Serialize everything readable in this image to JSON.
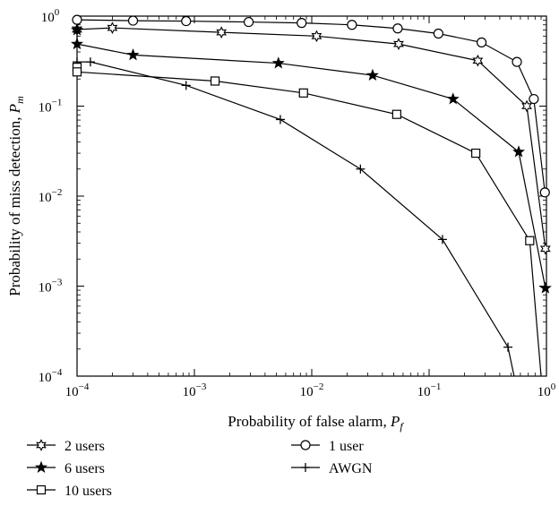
{
  "chart_data": {
    "type": "line",
    "xlabel": "Probability of false alarm, ",
    "xlabel_sym": "P",
    "xlabel_sub": "f",
    "ylabel": "Probability of miss detection, ",
    "ylabel_sym": "P",
    "ylabel_sub": "m",
    "xscale": "log",
    "yscale": "log",
    "xlim": [
      0.0001,
      1
    ],
    "ylim": [
      0.0001,
      1
    ],
    "x_ticks": [
      0.0001,
      0.001,
      0.01,
      0.1,
      1
    ],
    "x_tick_labels": [
      {
        "base": "10",
        "exp": "−4"
      },
      {
        "base": "10",
        "exp": "−3"
      },
      {
        "base": "10",
        "exp": "−2"
      },
      {
        "base": "10",
        "exp": "−1"
      },
      {
        "base": "10",
        "exp": "0"
      }
    ],
    "y_ticks": [
      0.0001,
      0.001,
      0.01,
      0.1,
      1
    ],
    "y_tick_labels": [
      {
        "base": "10",
        "exp": "−4"
      },
      {
        "base": "10",
        "exp": "−3"
      },
      {
        "base": "10",
        "exp": "−2"
      },
      {
        "base": "10",
        "exp": "−1"
      },
      {
        "base": "10",
        "exp": "0"
      }
    ],
    "grid": false,
    "legend_position": "below",
    "series": [
      {
        "name": "2 users",
        "marker": "hexstar",
        "color": "#000000",
        "x": [
          0.0001,
          0.0002,
          0.0017,
          0.011,
          0.055,
          0.26,
          0.68,
          0.98
        ],
        "y": [
          0.71,
          0.74,
          0.66,
          0.6,
          0.49,
          0.32,
          0.1,
          0.0026
        ]
      },
      {
        "name": "1 user",
        "marker": "circle",
        "color": "#000000",
        "x": [
          0.0001,
          0.0003,
          0.00085,
          0.0029,
          0.0082,
          0.022,
          0.054,
          0.12,
          0.28,
          0.56,
          0.78,
          0.97
        ],
        "y": [
          0.91,
          0.89,
          0.88,
          0.86,
          0.84,
          0.8,
          0.73,
          0.64,
          0.51,
          0.31,
          0.12,
          0.011
        ]
      },
      {
        "name": "6 users",
        "marker": "star",
        "color": "#000000",
        "x": [
          0.0001,
          0.0001,
          0.0003,
          0.0052,
          0.033,
          0.16,
          0.58,
          0.98
        ],
        "y": [
          0.7,
          0.49,
          0.37,
          0.3,
          0.22,
          0.12,
          0.031,
          0.00095
        ]
      },
      {
        "name": "AWGN",
        "marker": "plus",
        "color": "#000000",
        "x": [
          0.0001,
          0.00013,
          0.00085,
          0.0054,
          0.026,
          0.13,
          0.47,
          0.53
        ],
        "y": [
          0.31,
          0.31,
          0.17,
          0.071,
          0.02,
          0.0033,
          0.00021,
          0.0001
        ]
      },
      {
        "name": "10 users",
        "marker": "square",
        "color": "#000000",
        "x": [
          0.0001,
          0.0001,
          0.0015,
          0.0085,
          0.053,
          0.25,
          0.72,
          0.9
        ],
        "y": [
          0.27,
          0.24,
          0.19,
          0.14,
          0.081,
          0.03,
          0.0032,
          0.0001
        ]
      }
    ],
    "legend_order": [
      "2 users",
      "1 user",
      "6 users",
      "AWGN",
      "10 users"
    ]
  }
}
